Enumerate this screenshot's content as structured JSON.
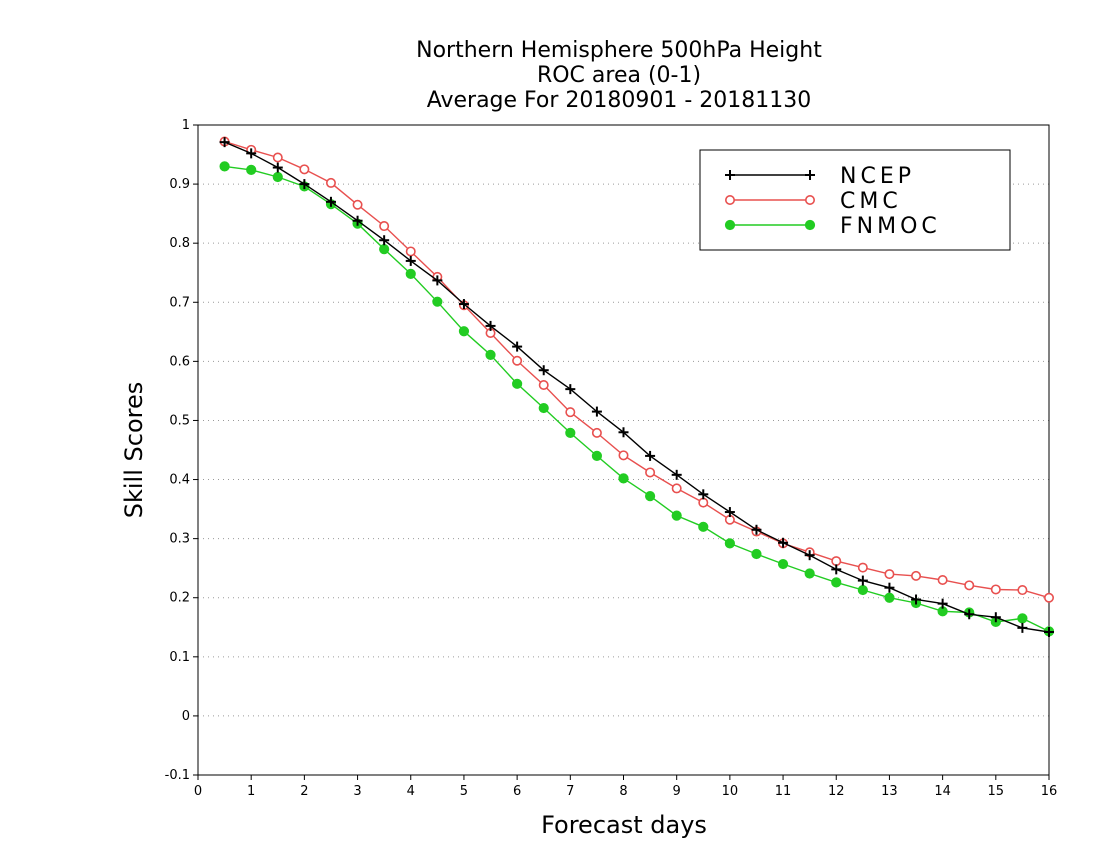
{
  "chart_data": {
    "type": "line",
    "title_lines": [
      "Northern Hemisphere 500hPa Height",
      "ROC area (0-1)",
      "Average For 20180901 - 20181130"
    ],
    "xlabel": "Forecast days",
    "ylabel": "Skill Scores",
    "xlim": [
      0,
      16
    ],
    "ylim": [
      -0.1,
      1
    ],
    "xticks": [
      "0",
      "1",
      "2",
      "3",
      "4",
      "5",
      "6",
      "7",
      "8",
      "9",
      "10",
      "11",
      "12",
      "13",
      "14",
      "15",
      "16"
    ],
    "yticks": [
      "-0.1",
      "0",
      "0.1",
      "0.2",
      "0.3",
      "0.4",
      "0.5",
      "0.6",
      "0.7",
      "0.8",
      "0.9",
      "1"
    ],
    "grid": "horizontal dotted",
    "legend_position": "top-right",
    "x": [
      0.5,
      1,
      1.5,
      2,
      2.5,
      3,
      3.5,
      4,
      4.5,
      5,
      5.5,
      6,
      6.5,
      7,
      7.5,
      8,
      8.5,
      9,
      9.5,
      10,
      10.5,
      11,
      11.5,
      12,
      12.5,
      13,
      13.5,
      14,
      14.5,
      15,
      15.5,
      16
    ],
    "series": [
      {
        "name": "NCEP",
        "color": "#000000",
        "marker": "plus",
        "values": [
          0.971,
          0.952,
          0.928,
          0.9,
          0.87,
          0.838,
          0.805,
          0.77,
          0.737,
          0.697,
          0.66,
          0.625,
          0.585,
          0.553,
          0.515,
          0.48,
          0.44,
          0.408,
          0.375,
          0.345,
          0.315,
          0.293,
          0.272,
          0.248,
          0.229,
          0.217,
          0.197,
          0.19,
          0.172,
          0.167,
          0.149,
          0.142
        ]
      },
      {
        "name": "CMC",
        "color": "#e8504f",
        "marker": "open-circle",
        "values": [
          0.972,
          0.958,
          0.945,
          0.925,
          0.902,
          0.865,
          0.829,
          0.786,
          0.743,
          0.695,
          0.648,
          0.601,
          0.56,
          0.514,
          0.479,
          0.441,
          0.412,
          0.385,
          0.361,
          0.332,
          0.312,
          0.292,
          0.277,
          0.262,
          0.251,
          0.24,
          0.237,
          0.23,
          0.221,
          0.214,
          0.213,
          0.2
        ]
      },
      {
        "name": "FNMOC",
        "color": "#22cc22",
        "marker": "filled-circle",
        "values": [
          0.93,
          0.924,
          0.912,
          0.896,
          0.866,
          0.833,
          0.79,
          0.748,
          0.701,
          0.651,
          0.611,
          0.562,
          0.521,
          0.479,
          0.44,
          0.402,
          0.372,
          0.339,
          0.32,
          0.292,
          0.274,
          0.257,
          0.241,
          0.226,
          0.213,
          0.2,
          0.191,
          0.177,
          0.175,
          0.159,
          0.165,
          0.143
        ]
      }
    ]
  }
}
